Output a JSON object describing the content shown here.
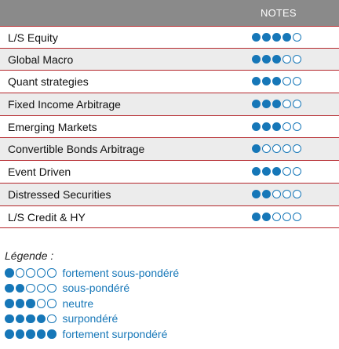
{
  "header": {
    "label": "NOTES"
  },
  "colors": {
    "accent": "#1677b8",
    "rule": "#b4262b",
    "header_bg": "#8a8a8a",
    "alt_row": "#ececec"
  },
  "strategies": [
    {
      "label": "L/S Equity",
      "rating": 4
    },
    {
      "label": "Global Macro",
      "rating": 3
    },
    {
      "label": "Quant strategies",
      "rating": 3
    },
    {
      "label": "Fixed Income Arbitrage",
      "rating": 3
    },
    {
      "label": "Emerging Markets",
      "rating": 3
    },
    {
      "label": "Convertible Bonds Arbitrage",
      "rating": 1
    },
    {
      "label": "Event Driven",
      "rating": 3
    },
    {
      "label": "Distressed Securities",
      "rating": 2
    },
    {
      "label": "L/S Credit & HY",
      "rating": 2
    }
  ],
  "legend": {
    "title": "Légende :",
    "items": [
      {
        "label": "fortement sous-pondéré",
        "rating": 1
      },
      {
        "label": "sous-pondéré",
        "rating": 2
      },
      {
        "label": "neutre",
        "rating": 3
      },
      {
        "label": "surpondéré",
        "rating": 4
      },
      {
        "label": "fortement surpondéré",
        "rating": 5
      }
    ]
  }
}
